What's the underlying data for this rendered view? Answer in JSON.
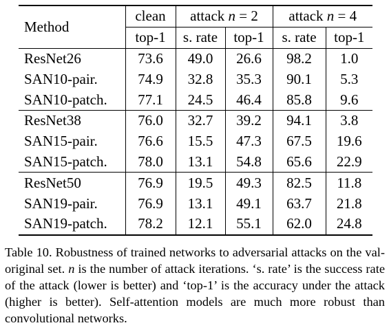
{
  "table": {
    "header": {
      "method": "Method",
      "clean": "clean",
      "attack2_prefix": "attack ",
      "attack4_prefix": "attack ",
      "n_var": "n",
      "attack2_suffix": " = 2",
      "attack4_suffix": " = 4",
      "top1": "top-1",
      "srate": "s. rate"
    },
    "groups": [
      [
        {
          "method": "ResNet26",
          "clean": "73.6",
          "a2_srate": "49.0",
          "a2_top1": "26.6",
          "a4_srate": "98.2",
          "a4_top1": "1.0"
        },
        {
          "method": "SAN10-pair.",
          "clean": "74.9",
          "a2_srate": "32.8",
          "a2_top1": "35.3",
          "a4_srate": "90.1",
          "a4_top1": "5.3"
        },
        {
          "method": "SAN10-patch.",
          "clean": "77.1",
          "a2_srate": "24.5",
          "a2_top1": "46.4",
          "a4_srate": "85.8",
          "a4_top1": "9.6"
        }
      ],
      [
        {
          "method": "ResNet38",
          "clean": "76.0",
          "a2_srate": "32.7",
          "a2_top1": "39.2",
          "a4_srate": "94.1",
          "a4_top1": "3.8"
        },
        {
          "method": "SAN15-pair.",
          "clean": "76.6",
          "a2_srate": "15.5",
          "a2_top1": "47.3",
          "a4_srate": "67.5",
          "a4_top1": "19.6"
        },
        {
          "method": "SAN15-patch.",
          "clean": "78.0",
          "a2_srate": "13.1",
          "a2_top1": "54.8",
          "a4_srate": "65.6",
          "a4_top1": "22.9"
        }
      ],
      [
        {
          "method": "ResNet50",
          "clean": "76.9",
          "a2_srate": "19.5",
          "a2_top1": "49.3",
          "a4_srate": "82.5",
          "a4_top1": "11.8"
        },
        {
          "method": "SAN19-pair.",
          "clean": "76.9",
          "a2_srate": "13.1",
          "a2_top1": "49.1",
          "a4_srate": "63.7",
          "a4_top1": "21.8"
        },
        {
          "method": "SAN19-patch.",
          "clean": "78.2",
          "a2_srate": "12.1",
          "a2_top1": "55.1",
          "a4_srate": "62.0",
          "a4_top1": "24.8"
        }
      ]
    ]
  },
  "caption": {
    "part1": "Table 10. Robustness of trained networks to adversarial attacks on the val-original set. ",
    "n_var": "n",
    "part2": " is the number of attack iterations. ‘s. rate’ is the success rate of the attack (lower is better) and ‘top-1’ is the accuracy under the attack (higher is better). Self-attention models are much more robust than convolutional networks."
  }
}
